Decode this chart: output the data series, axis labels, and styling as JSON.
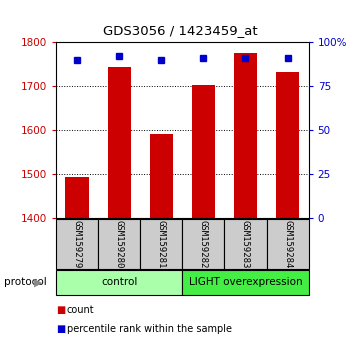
{
  "title": "GDS3056 / 1423459_at",
  "samples": [
    "GSM159279",
    "GSM159280",
    "GSM159281",
    "GSM159282",
    "GSM159283",
    "GSM159284"
  ],
  "counts": [
    1492,
    1745,
    1592,
    1703,
    1775,
    1732
  ],
  "percentiles": [
    90,
    92,
    90,
    91,
    91,
    91
  ],
  "ylim_left": [
    1400,
    1800
  ],
  "ylim_right": [
    0,
    100
  ],
  "yticks_left": [
    1400,
    1500,
    1600,
    1700,
    1800
  ],
  "yticks_right": [
    0,
    25,
    50,
    75,
    100
  ],
  "ytick_labels_right": [
    "0",
    "25",
    "50",
    "75",
    "100%"
  ],
  "bar_color": "#cc0000",
  "dot_color": "#0000cc",
  "bar_width": 0.55,
  "groups": [
    {
      "label": "control",
      "start": 0,
      "end": 3,
      "color": "#aaffaa"
    },
    {
      "label": "LIGHT overexpression",
      "start": 3,
      "end": 6,
      "color": "#44ee44"
    }
  ],
  "protocol_label": "protocol",
  "legend_items": [
    {
      "color": "#cc0000",
      "label": "count"
    },
    {
      "color": "#0000cc",
      "label": "percentile rank within the sample"
    }
  ],
  "bg_color": "#ffffff",
  "plot_bg": "#ffffff",
  "sample_box_color": "#cccccc"
}
